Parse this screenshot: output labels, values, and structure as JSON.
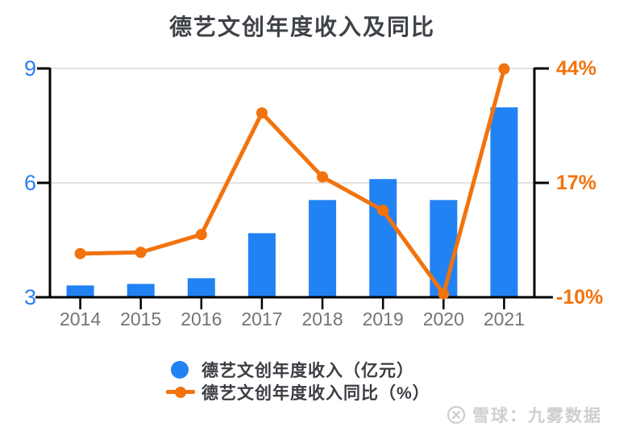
{
  "chart_data": {
    "type": "bar",
    "title": "德艺文创年度收入及同比",
    "categories": [
      "2014",
      "2015",
      "2016",
      "2017",
      "2018",
      "2019",
      "2020",
      "2021"
    ],
    "series": [
      {
        "name": "德艺文创年度收入（亿元）",
        "type": "bar",
        "axis": "left",
        "color": "#2182F3",
        "values": [
          3.31,
          3.35,
          3.5,
          4.68,
          5.55,
          6.1,
          5.55,
          7.98
        ]
      },
      {
        "name": "德艺文创年度收入同比（%）",
        "type": "line",
        "axis": "right",
        "color": "#F2730D",
        "values": [
          0.3,
          0.6,
          4.8,
          33.5,
          18.4,
          10.5,
          -9.2,
          43.9
        ]
      }
    ],
    "left_axis": {
      "range": [
        3,
        9
      ],
      "ticks": [
        9,
        6,
        3
      ],
      "tick_labels": [
        "9",
        "6",
        "3"
      ],
      "color": "#2C80F0"
    },
    "right_axis": {
      "range": [
        -10,
        44
      ],
      "ticks": [
        44,
        17,
        -10
      ],
      "tick_labels": [
        "44%",
        "17%",
        "-10%"
      ],
      "color": "#F2730D"
    },
    "x_axis": {
      "label_color": "#747474",
      "line_color": "#000000"
    },
    "grid": true,
    "gridline_color": "#E2E2E2",
    "legend_position": "bottom"
  },
  "legend": {
    "items": [
      {
        "label": "德艺文创年度收入（亿元）",
        "marker": "circle",
        "color": "#2182F3"
      },
      {
        "label": "德艺文创年度收入同比（%）",
        "marker": "line-dot",
        "color": "#F2730D"
      }
    ]
  },
  "watermark": {
    "logo": "xueqiu-icon",
    "text": "雪球：九雾数据",
    "color": "#CFCFCF"
  }
}
